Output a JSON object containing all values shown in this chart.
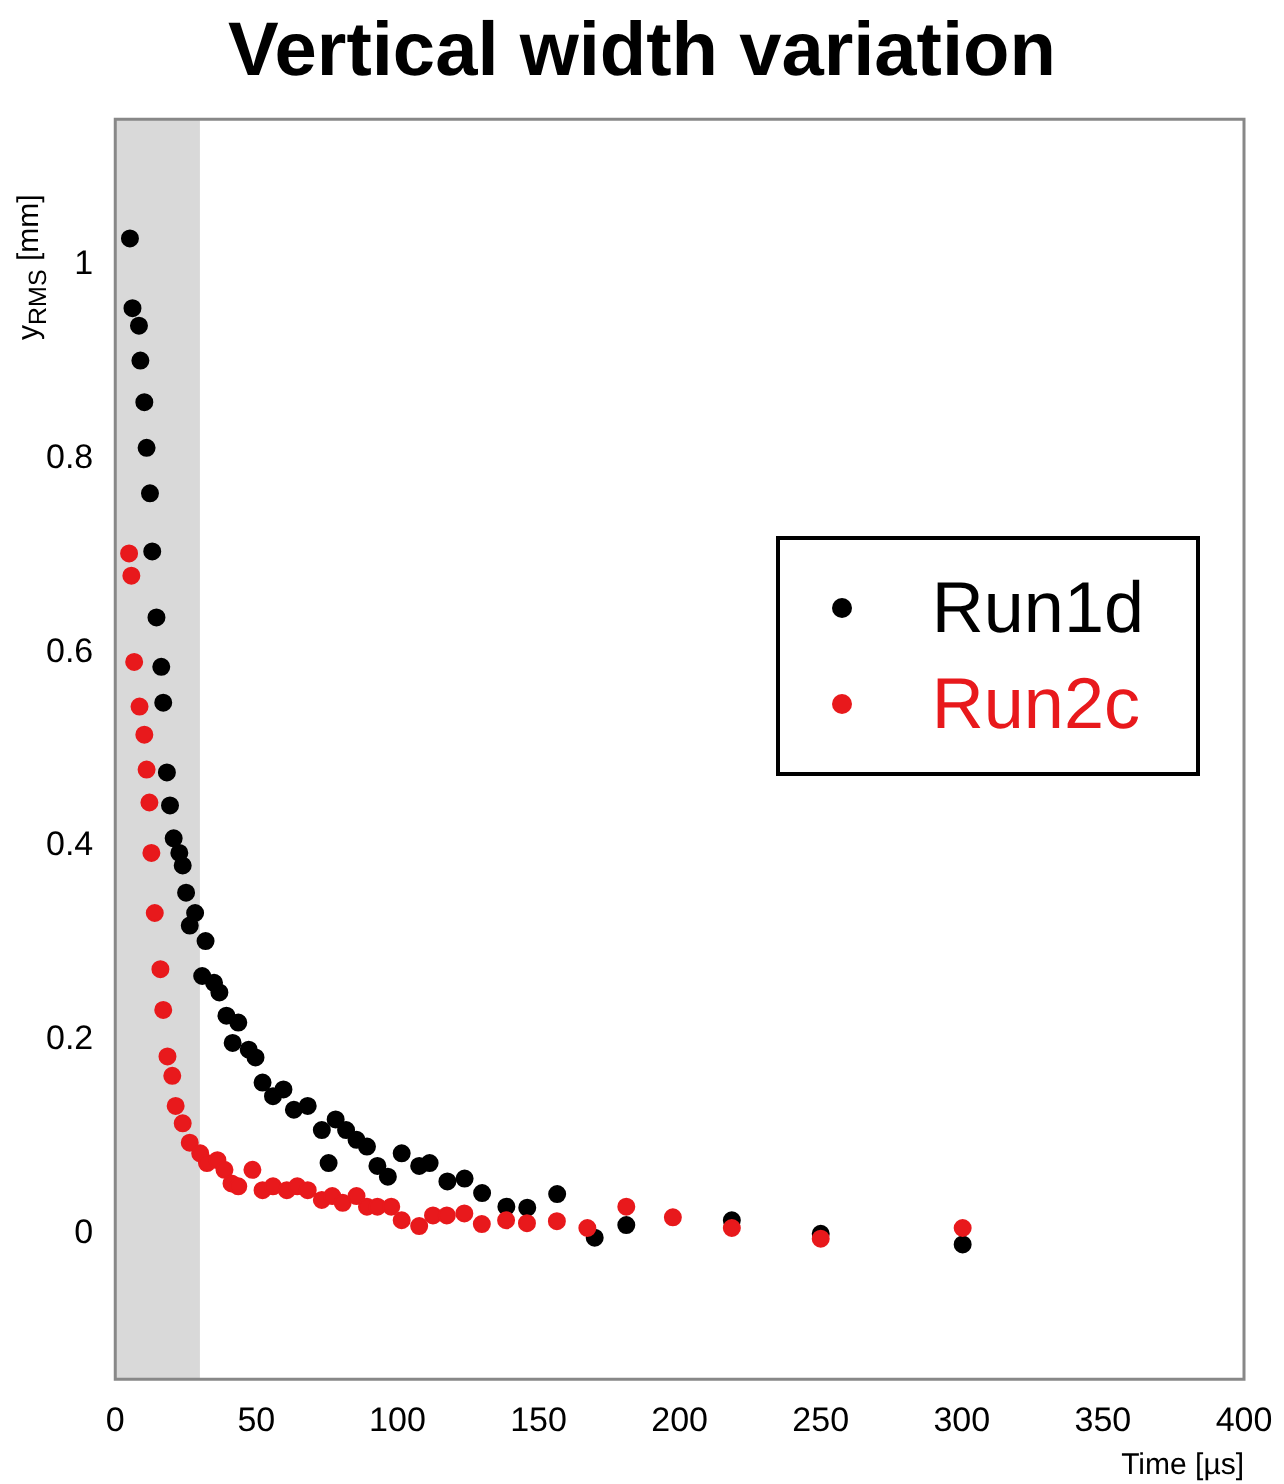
{
  "chart_data": {
    "type": "scatter",
    "title": "Vertical width variation",
    "xlabel": "Time [µs]",
    "ylabel": "y$_{RMS}$ [mm]",
    "xlim": [
      0,
      400
    ],
    "xticks": [
      0,
      50,
      100,
      150,
      200,
      250,
      300,
      350,
      400
    ],
    "ylim": [
      -0.15,
      1.15
    ],
    "yticks": [
      0,
      0.2,
      0.4,
      0.6,
      0.8,
      1
    ],
    "grid": false,
    "legend": "right",
    "marker": "circle",
    "bands": [
      {
        "axis": "x",
        "from": 0,
        "to": 30,
        "color": "#d9d9d9"
      }
    ],
    "series": [
      {
        "name": "Run1d",
        "color": "#000000",
        "x": [
          5.2,
          6.1,
          8.4,
          8.9,
          10.3,
          11.1,
          12.3,
          13.1,
          14.6,
          16.3,
          17.0,
          18.3,
          19.4,
          20.7,
          22.7,
          23.9,
          25.1,
          26.4,
          28.3,
          30.8,
          32.0,
          35.0,
          36.9,
          39.4,
          41.6,
          43.6,
          47.3,
          49.7,
          52.2,
          55.9,
          59.6,
          63.3,
          68.2,
          73.2,
          75.6,
          78.1,
          81.8,
          85.5,
          89.2,
          92.9,
          96.6,
          101.5,
          107.7,
          111.4,
          117.7,
          123.8,
          130,
          138.6,
          146,
          156.6,
          169.9,
          181.1,
          218.5,
          250,
          300.3
        ],
        "values": [
          1.027,
          0.955,
          0.937,
          0.901,
          0.858,
          0.811,
          0.764,
          0.704,
          0.636,
          0.585,
          0.548,
          0.476,
          0.442,
          0.408,
          0.393,
          0.38,
          0.352,
          0.318,
          0.331,
          0.266,
          0.302,
          0.259,
          0.249,
          0.225,
          0.197,
          0.218,
          0.19,
          0.182,
          0.156,
          0.142,
          0.149,
          0.128,
          0.132,
          0.107,
          0.073,
          0.118,
          0.107,
          0.097,
          0.09,
          0.07,
          0.059,
          0.083,
          0.07,
          0.073,
          0.054,
          0.057,
          0.042,
          0.028,
          0.027,
          0.041,
          -0.004,
          0.009,
          0.014,
          0.0,
          -0.011
        ]
      },
      {
        "name": "Run2c",
        "color": "#e8191c",
        "x": [
          4.9,
          5.7,
          6.7,
          8.6,
          10.3,
          11.1,
          12.1,
          12.8,
          14.0,
          16.0,
          17.0,
          18.5,
          20.2,
          21.4,
          23.9,
          26.4,
          30.1,
          32.5,
          36.2,
          38.7,
          41.2,
          43.6,
          48.6,
          52.2,
          55.9,
          60.8,
          64.5,
          68.2,
          73.2,
          76.9,
          80.6,
          85.5,
          89.2,
          92.9,
          97.8,
          101.5,
          107.7,
          112.6,
          117.5,
          123.7,
          129.9,
          138.5,
          145.9,
          156.5,
          167.3,
          181.1,
          197.6,
          218.5,
          250,
          300.3
        ],
        "values": [
          0.702,
          0.679,
          0.59,
          0.544,
          0.515,
          0.479,
          0.445,
          0.393,
          0.331,
          0.273,
          0.231,
          0.183,
          0.163,
          0.132,
          0.114,
          0.094,
          0.083,
          0.073,
          0.076,
          0.066,
          0.052,
          0.049,
          0.066,
          0.045,
          0.049,
          0.045,
          0.049,
          0.045,
          0.035,
          0.039,
          0.032,
          0.039,
          0.028,
          0.028,
          0.028,
          0.014,
          0.008,
          0.019,
          0.019,
          0.021,
          0.01,
          0.014,
          0.011,
          0.013,
          0.006,
          0.028,
          0.017,
          0.006,
          -0.005,
          0.006
        ]
      }
    ]
  }
}
